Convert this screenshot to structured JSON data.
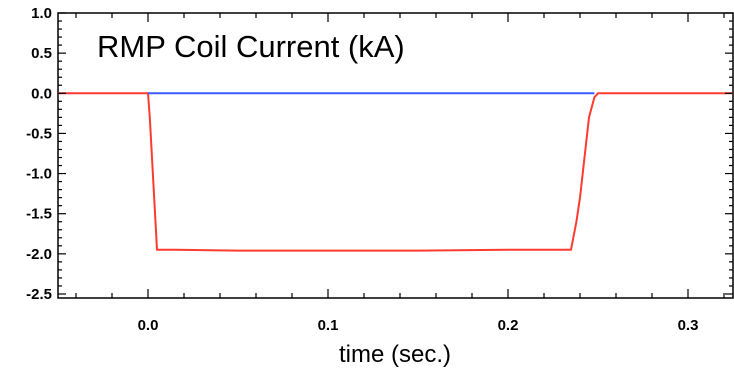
{
  "chart_data": {
    "type": "line",
    "title": "RMP Coil Current (kA)",
    "xlabel": "time (sec.)",
    "ylabel": "",
    "xlim": [
      -0.05,
      0.325
    ],
    "ylim": [
      -2.55,
      1.0
    ],
    "x_ticks": [
      0.0,
      0.1,
      0.2,
      0.3
    ],
    "x_tick_labels": [
      "0.0",
      "0.1",
      "0.2",
      "0.3"
    ],
    "y_ticks": [
      1.0,
      0.5,
      0.0,
      -0.5,
      -1.0,
      -1.5,
      -2.0,
      -2.5
    ],
    "y_tick_labels": [
      "1.0",
      "0.5",
      "0.0",
      "-0.5",
      "-1.0",
      "-1.5",
      "-2.0",
      "-2.5"
    ],
    "grid": false,
    "series": [
      {
        "color": "#ff3b30",
        "x": [
          -0.05,
          0.0,
          0.001,
          0.005,
          0.015,
          0.05,
          0.1,
          0.15,
          0.2,
          0.235,
          0.238,
          0.24,
          0.242,
          0.245,
          0.248,
          0.25,
          0.3,
          0.325
        ],
        "y": [
          0.0,
          0.0,
          -0.3,
          -1.95,
          -1.95,
          -1.96,
          -1.96,
          -1.96,
          -1.95,
          -1.95,
          -1.6,
          -1.3,
          -0.9,
          -0.3,
          -0.05,
          0.0,
          0.0,
          0.0
        ]
      },
      {
        "color": "#3b5bff",
        "x": [
          0.0,
          0.05,
          0.1,
          0.15,
          0.2,
          0.248
        ],
        "y": [
          0.0,
          0.0,
          0.0,
          0.0,
          0.0,
          0.0
        ]
      }
    ]
  }
}
